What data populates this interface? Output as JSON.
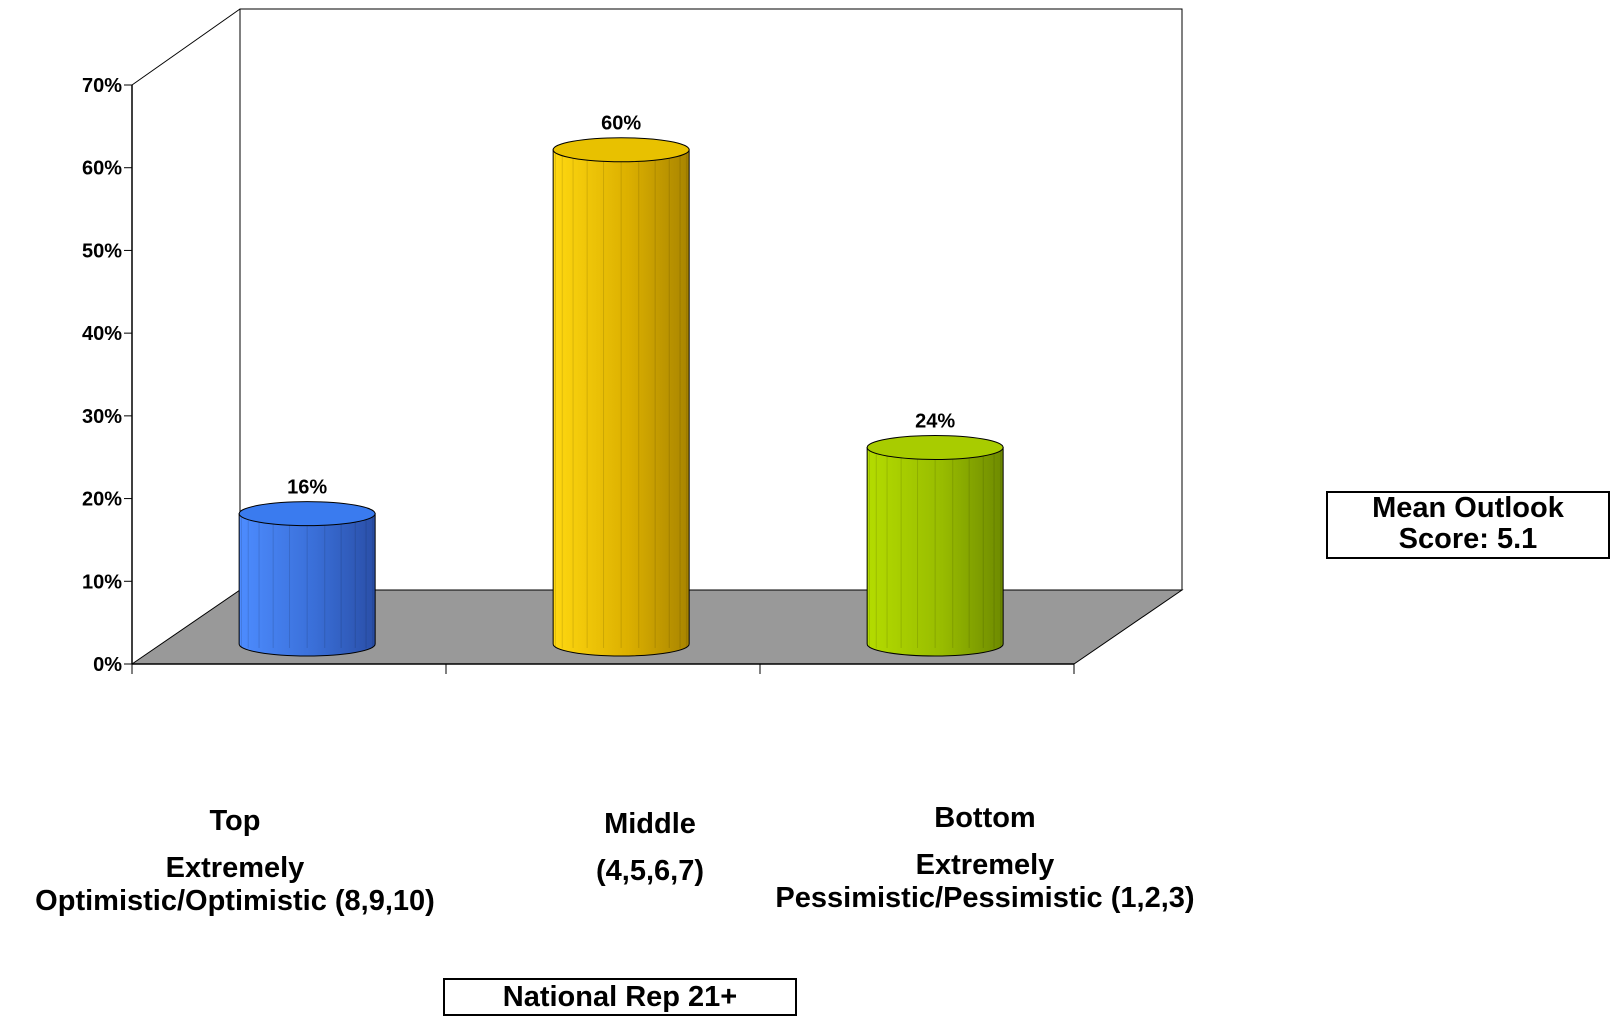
{
  "chart_data": {
    "type": "bar",
    "style": "3d-cylinder",
    "categories": [
      "Top",
      "Middle",
      "Bottom"
    ],
    "category_descriptions": [
      "Extremely\nOptimistic/Optimistic (8,9,10)",
      "(4,5,6,7)",
      "Extremely\nPessimistic/Pessimistic (1,2,3)"
    ],
    "values": [
      16,
      60,
      24
    ],
    "data_labels": [
      "16%",
      "60%",
      "24%"
    ],
    "colors": [
      "#3a7bef",
      "#e8c100",
      "#a8cc00"
    ],
    "ylim": [
      0,
      70
    ],
    "y_ticks": [
      "0%",
      "10%",
      "20%",
      "30%",
      "40%",
      "50%",
      "60%",
      "70%"
    ],
    "floor_color": "#999999",
    "grid": false
  },
  "annotations": {
    "mean_line1": "Mean Outlook",
    "mean_line2": "Score: 5.1",
    "sample": "National Rep 21+"
  }
}
